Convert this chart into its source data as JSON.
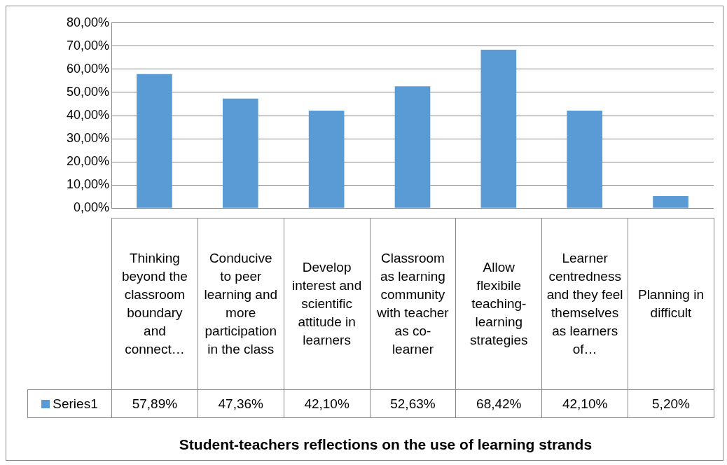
{
  "chart_data": {
    "type": "bar",
    "title": "Student-teachers reflections on the use of learning strands",
    "categories": [
      "Thinking beyond the classroom boundary and connect…",
      "Conducive to peer learning and more participation in the class",
      "Develop interest and scientific attitude in learners",
      "Classroom as learning community with teacher as co-learner",
      "Allow flexibile teaching-learning strategies",
      "Learner centredness and they feel themselves as learners of…",
      "Planning in difficult"
    ],
    "series": [
      {
        "name": "Series1",
        "color": "#5b9bd5",
        "values": [
          57.89,
          47.36,
          42.1,
          52.63,
          68.42,
          42.1,
          5.2
        ],
        "value_labels": [
          "57,89%",
          "47,36%",
          "42,10%",
          "52,63%",
          "68,42%",
          "42,10%",
          "5,20%"
        ]
      }
    ],
    "ylim": [
      0,
      80
    ],
    "yticks": [
      {
        "value": 0,
        "label": "0,00%"
      },
      {
        "value": 10,
        "label": "10,00%"
      },
      {
        "value": 20,
        "label": "20,00%"
      },
      {
        "value": 30,
        "label": "30,00%"
      },
      {
        "value": 40,
        "label": "40,00%"
      },
      {
        "value": 50,
        "label": "50,00%"
      },
      {
        "value": 60,
        "label": "60,00%"
      },
      {
        "value": 70,
        "label": "70,00%"
      },
      {
        "value": 80,
        "label": "80,00%"
      }
    ],
    "grid": "y",
    "legend": "bottom left"
  }
}
